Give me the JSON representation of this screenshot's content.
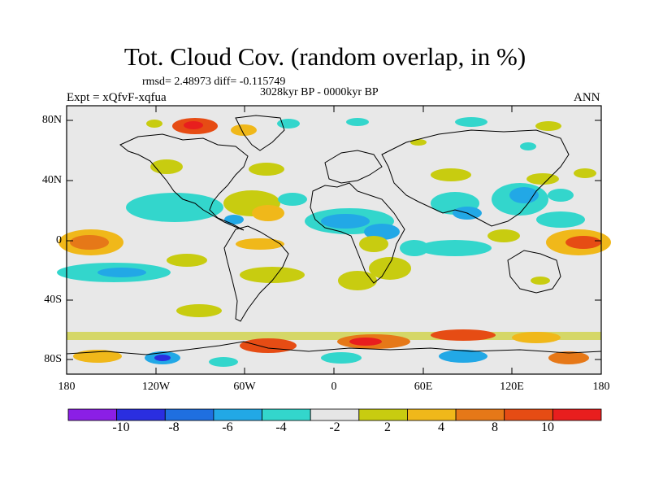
{
  "header": {
    "title": "Tot. Cloud Cov. (random overlap, in %)",
    "stats": "rmsd= 2.48973 diff= -0.115749",
    "period": "3028kyr BP - 0000kyr BP",
    "experiment": "Expt = xQfvF-xqfua",
    "season": "ANN"
  },
  "axes": {
    "y_ticks": [
      "80N",
      "40N",
      "0",
      "40S",
      "80S"
    ],
    "x_ticks": [
      "180",
      "120W",
      "60W",
      "0",
      "60E",
      "120E",
      "180"
    ]
  },
  "colorbar": {
    "labels": [
      "-10",
      "-8",
      "-6",
      "-4",
      "-2",
      "2",
      "4",
      "8",
      "10"
    ],
    "colors": [
      "#8b1fe6",
      "#2a2ee0",
      "#1f6fe0",
      "#22a8e6",
      "#33d6cc",
      "#e6e6e6",
      "#c8cc10",
      "#f0b81a",
      "#e67818",
      "#e64c14",
      "#e81e1e"
    ]
  },
  "colors": {
    "background": "#e8e8e8",
    "coast": "#000000"
  }
}
